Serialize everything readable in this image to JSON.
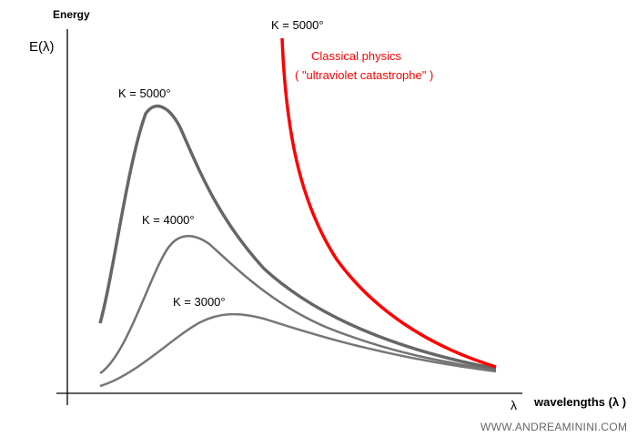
{
  "y_axis_title": "Energy",
  "y_axis_label": "E(λ)",
  "x_axis_symbol": "λ",
  "x_axis_title": "wavelengths (λ )",
  "curves": {
    "k5000": "K = 5000°",
    "k4000": "K = 4000°",
    "k3000": "K = 3000°",
    "classical": "K = 5000°"
  },
  "classical_title": "Classical physics",
  "classical_subtitle": "( \"ultraviolet catastrophe\" )",
  "watermark": "WWW.ANDREAMININI.COM",
  "colors": {
    "blackbody": "#6b6b6b",
    "classical": "#ff0000",
    "axis": "#000000"
  }
}
